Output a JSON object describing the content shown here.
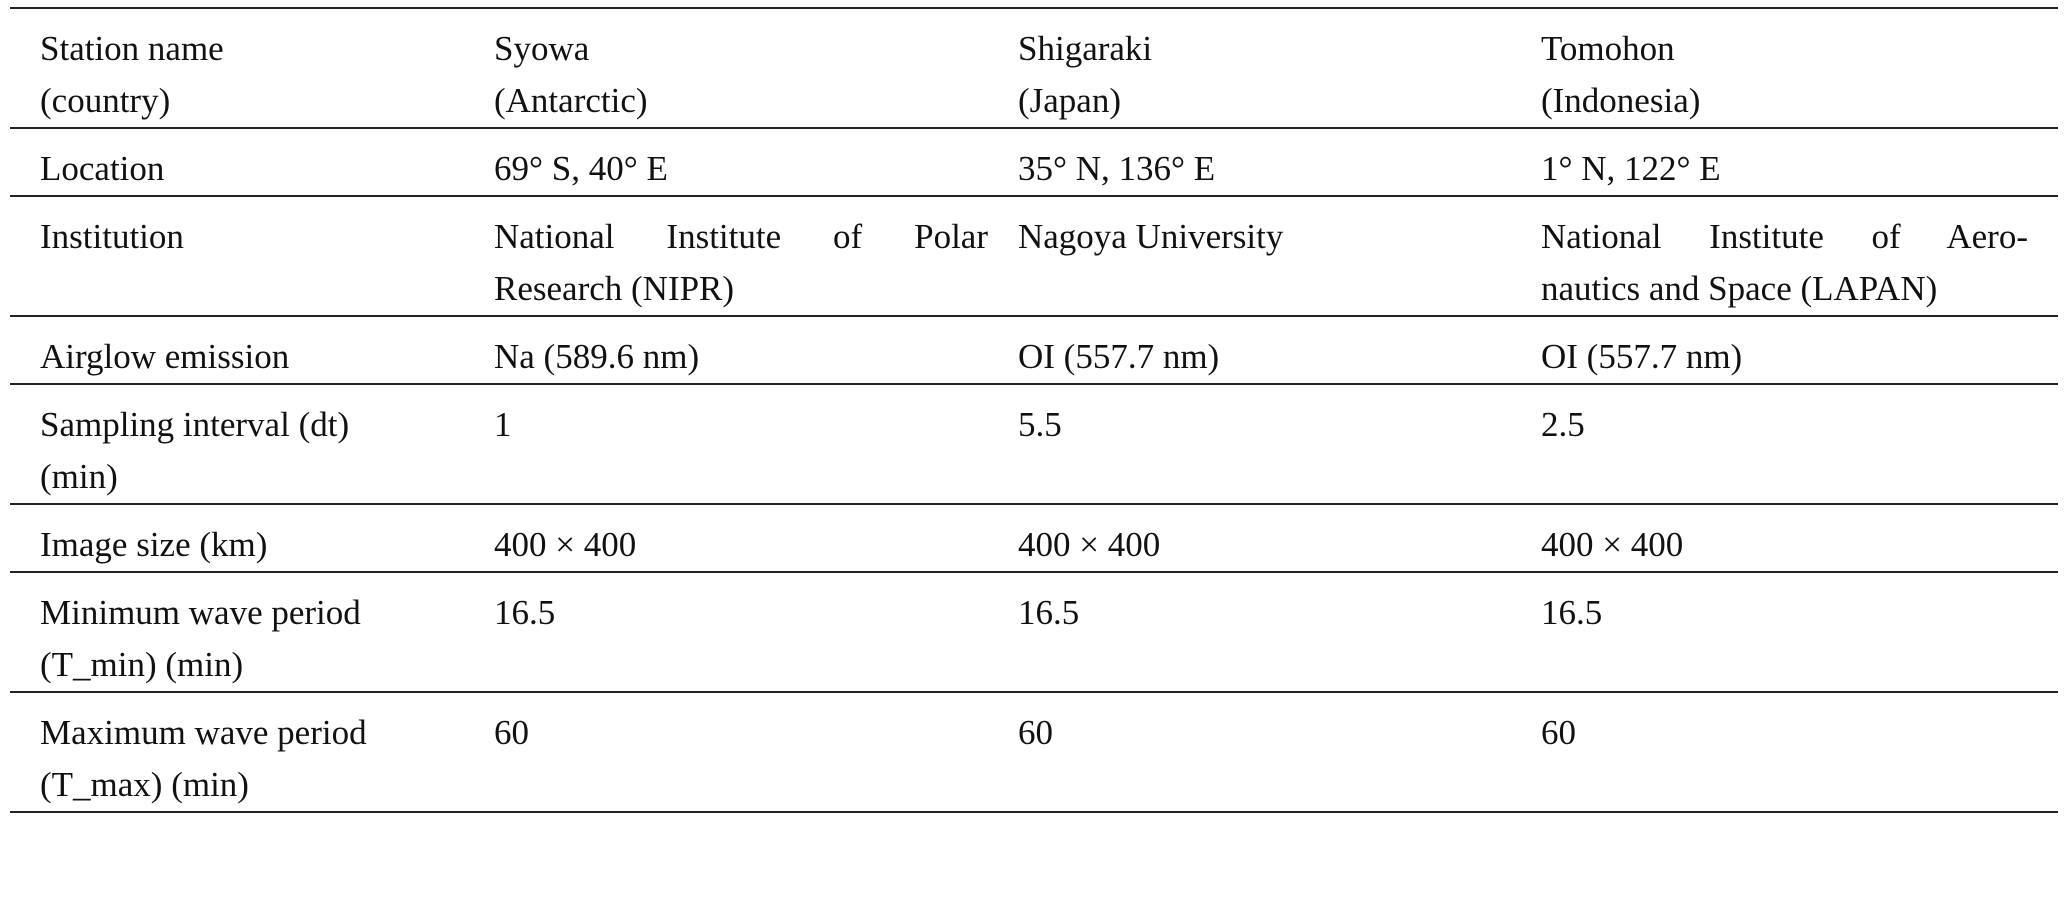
{
  "table": {
    "header": [
      [
        "Station name",
        "(country)"
      ],
      [
        "Syowa",
        "(Antarctic)"
      ],
      [
        "Shigaraki",
        "(Japan)"
      ],
      [
        "Tomohon",
        "(Indonesia)"
      ]
    ],
    "rows": [
      [
        [
          "Location"
        ],
        [
          "69° S, 40° E"
        ],
        [
          "35° N, 136° E"
        ],
        [
          "1° N, 122° E"
        ]
      ],
      [
        [
          "Institution"
        ],
        [
          "National Institute of Polar",
          "Research (NIPR)"
        ],
        [
          "Nagoya University"
        ],
        [
          "National Institute of Aero-",
          "nautics and Space (LAPAN)"
        ]
      ],
      [
        [
          "Airglow emission"
        ],
        [
          "Na (589.6 nm)"
        ],
        [
          "OI (557.7 nm)"
        ],
        [
          "OI (557.7 nm)"
        ]
      ],
      [
        [
          "Sampling interval (dt)",
          "(min)"
        ],
        [
          "1"
        ],
        [
          "5.5"
        ],
        [
          "2.5"
        ]
      ],
      [
        [
          "Image size (km)"
        ],
        [
          "400 × 400"
        ],
        [
          "400 × 400"
        ],
        [
          "400 × 400"
        ]
      ],
      [
        [
          "Minimum wave period",
          "(T_min) (min)"
        ],
        [
          "16.5"
        ],
        [
          "16.5"
        ],
        [
          "16.5"
        ]
      ],
      [
        [
          "Maximum wave period",
          "(T_max) (min)"
        ],
        [
          "60"
        ],
        [
          "60"
        ],
        [
          "60"
        ]
      ]
    ]
  }
}
